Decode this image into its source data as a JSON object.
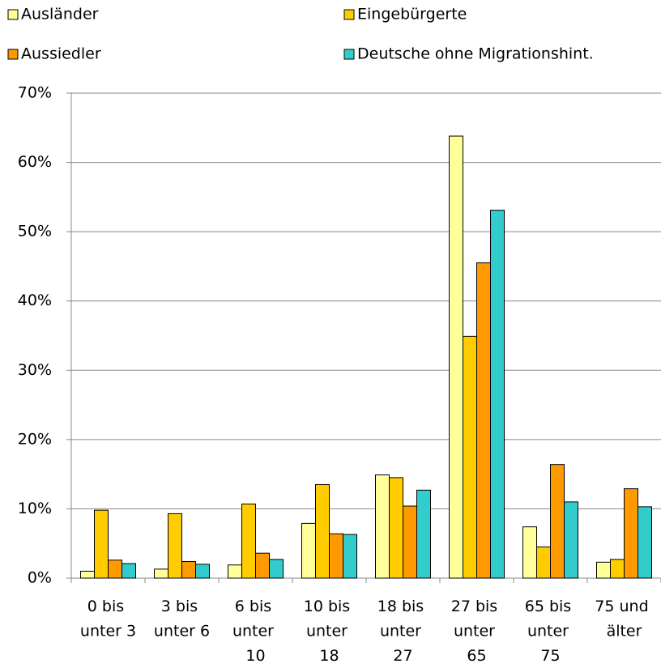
{
  "chart_data": {
    "type": "bar",
    "categories": [
      "0 bis unter 3",
      "3 bis unter 6",
      "6 bis unter 10",
      "10 bis unter 18",
      "18 bis unter 27",
      "27 bis unter 65",
      "65 bis unter 75",
      "75 und älter"
    ],
    "series": [
      {
        "name": "Ausländer",
        "color": "#ffff99",
        "values": [
          1.0,
          1.3,
          1.9,
          7.9,
          14.9,
          63.8,
          7.4,
          2.3
        ]
      },
      {
        "name": "Eingebürgerte",
        "color": "#ffcc00",
        "values": [
          9.8,
          9.3,
          10.7,
          13.5,
          14.5,
          34.9,
          4.5,
          2.7
        ]
      },
      {
        "name": "Aussiedler",
        "color": "#ff9900",
        "values": [
          2.6,
          2.4,
          3.6,
          6.4,
          10.4,
          45.5,
          16.4,
          12.9
        ]
      },
      {
        "name": "Deutsche ohne Migrationshint.",
        "color": "#33cccc",
        "values": [
          2.1,
          2.0,
          2.7,
          6.3,
          12.7,
          53.1,
          11.0,
          10.3
        ]
      }
    ],
    "ylim": [
      0,
      70
    ],
    "yticks": [
      {
        "value": 0,
        "label": "0%"
      },
      {
        "value": 10,
        "label": "10%"
      },
      {
        "value": 20,
        "label": "20%"
      },
      {
        "value": 30,
        "label": "30%"
      },
      {
        "value": 40,
        "label": "40%"
      },
      {
        "value": 50,
        "label": "50%"
      },
      {
        "value": 60,
        "label": "60%"
      },
      {
        "value": 70,
        "label": "70%"
      }
    ],
    "grid": true,
    "legend": "top"
  }
}
